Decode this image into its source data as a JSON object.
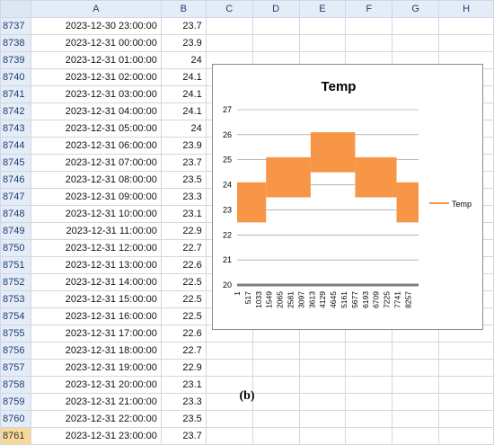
{
  "spreadsheet": {
    "columns": [
      "A",
      "B",
      "C",
      "D",
      "E",
      "F",
      "G",
      "H"
    ],
    "rows": [
      {
        "row": "8737",
        "datetime": "2023-12-30 23:00:00",
        "temp": "23.7"
      },
      {
        "row": "8738",
        "datetime": "2023-12-31 00:00:00",
        "temp": "23.9"
      },
      {
        "row": "8739",
        "datetime": "2023-12-31 01:00:00",
        "temp": "24"
      },
      {
        "row": "8740",
        "datetime": "2023-12-31 02:00:00",
        "temp": "24.1"
      },
      {
        "row": "8741",
        "datetime": "2023-12-31 03:00:00",
        "temp": "24.1"
      },
      {
        "row": "8742",
        "datetime": "2023-12-31 04:00:00",
        "temp": "24.1"
      },
      {
        "row": "8743",
        "datetime": "2023-12-31 05:00:00",
        "temp": "24"
      },
      {
        "row": "8744",
        "datetime": "2023-12-31 06:00:00",
        "temp": "23.9"
      },
      {
        "row": "8745",
        "datetime": "2023-12-31 07:00:00",
        "temp": "23.7"
      },
      {
        "row": "8746",
        "datetime": "2023-12-31 08:00:00",
        "temp": "23.5"
      },
      {
        "row": "8747",
        "datetime": "2023-12-31 09:00:00",
        "temp": "23.3"
      },
      {
        "row": "8748",
        "datetime": "2023-12-31 10:00:00",
        "temp": "23.1"
      },
      {
        "row": "8749",
        "datetime": "2023-12-31 11:00:00",
        "temp": "22.9"
      },
      {
        "row": "8750",
        "datetime": "2023-12-31 12:00:00",
        "temp": "22.7"
      },
      {
        "row": "8751",
        "datetime": "2023-12-31 13:00:00",
        "temp": "22.6"
      },
      {
        "row": "8752",
        "datetime": "2023-12-31 14:00:00",
        "temp": "22.5"
      },
      {
        "row": "8753",
        "datetime": "2023-12-31 15:00:00",
        "temp": "22.5"
      },
      {
        "row": "8754",
        "datetime": "2023-12-31 16:00:00",
        "temp": "22.5"
      },
      {
        "row": "8755",
        "datetime": "2023-12-31 17:00:00",
        "temp": "22.6"
      },
      {
        "row": "8756",
        "datetime": "2023-12-31 18:00:00",
        "temp": "22.7"
      },
      {
        "row": "8757",
        "datetime": "2023-12-31 19:00:00",
        "temp": "22.9"
      },
      {
        "row": "8758",
        "datetime": "2023-12-31 20:00:00",
        "temp": "23.1"
      },
      {
        "row": "8759",
        "datetime": "2023-12-31 21:00:00",
        "temp": "23.3"
      },
      {
        "row": "8760",
        "datetime": "2023-12-31 22:00:00",
        "temp": "23.5"
      },
      {
        "row": "8761",
        "datetime": "2023-12-31 23:00:00",
        "temp": "23.7"
      }
    ],
    "active_row": "8761"
  },
  "chart_data": {
    "type": "line",
    "title": "Temp",
    "xlabel": "",
    "ylabel": "",
    "ylim": [
      20,
      27
    ],
    "yticks": [
      20,
      21,
      22,
      23,
      24,
      25,
      26,
      27
    ],
    "xlim": [
      1,
      8761
    ],
    "xticks": [
      1,
      517,
      1033,
      1549,
      2065,
      2581,
      3097,
      3613,
      4129,
      4645,
      5161,
      5677,
      6193,
      6709,
      7225,
      7741,
      8257
    ],
    "legend": "right",
    "grid": true,
    "series": [
      {
        "name": "Temp",
        "color": "#f79646",
        "band": [
          {
            "x_start": 1,
            "x_end": 1400,
            "min": 22.5,
            "max": 24.1
          },
          {
            "x_start": 1400,
            "x_end": 3550,
            "min": 23.5,
            "max": 25.1
          },
          {
            "x_start": 3550,
            "x_end": 5700,
            "min": 24.5,
            "max": 26.1
          },
          {
            "x_start": 5700,
            "x_end": 7700,
            "min": 23.5,
            "max": 25.1
          },
          {
            "x_start": 7700,
            "x_end": 8761,
            "min": 22.5,
            "max": 24.1
          }
        ]
      }
    ]
  },
  "caption": "(b)"
}
